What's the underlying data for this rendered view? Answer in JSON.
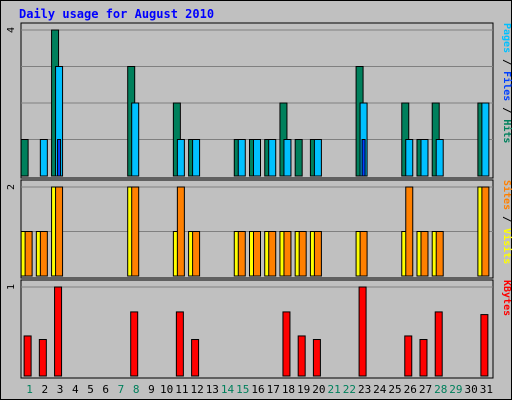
{
  "colors": {
    "frame_bg": "#c0c0c0",
    "plot_bg": "#c0c0c0",
    "grid": "#808080",
    "title": "#0000ff",
    "hits": "#00805c",
    "files": "#00c0ff",
    "pages": "#0040ff",
    "visits": "#ffff00",
    "sites": "#ff8000",
    "kbytes": "#ff0000",
    "weekend_day": "#00805c",
    "weekday": "#000000"
  },
  "chart_data": {
    "type": "bar",
    "title": "Daily usage for August 2010",
    "days": [
      1,
      2,
      3,
      4,
      5,
      6,
      7,
      8,
      9,
      10,
      11,
      12,
      13,
      14,
      15,
      16,
      17,
      18,
      19,
      20,
      21,
      22,
      23,
      24,
      25,
      26,
      27,
      28,
      29,
      30,
      31
    ],
    "weekend_days": [
      1,
      7,
      8,
      14,
      15,
      21,
      22,
      28,
      29
    ],
    "panels": [
      {
        "id": "top",
        "ymax": 4,
        "ymax_label": "4",
        "legend": [
          {
            "text": "Pages",
            "color_key": "files"
          },
          {
            "text": " / ",
            "color_key": "weekday"
          },
          {
            "text": "Files",
            "color_key": "pages"
          },
          {
            "text": " / ",
            "color_key": "weekday"
          },
          {
            "text": "Hits",
            "color_key": "hits"
          }
        ],
        "series": [
          {
            "key": "hits",
            "values": [
              1,
              0,
              4,
              0,
              0,
              0,
              0,
              3,
              0,
              0,
              2,
              1,
              0,
              0,
              1,
              1,
              1,
              2,
              1,
              1,
              0,
              0,
              3,
              0,
              0,
              2,
              1,
              2,
              0,
              0,
              2
            ]
          },
          {
            "key": "files",
            "values": [
              0,
              1,
              3,
              0,
              0,
              0,
              0,
              2,
              0,
              0,
              1,
              1,
              0,
              0,
              1,
              1,
              1,
              1,
              0,
              1,
              0,
              0,
              2,
              0,
              0,
              1,
              1,
              1,
              0,
              0,
              2
            ]
          },
          {
            "key": "pages",
            "values": [
              0,
              0,
              1,
              0,
              0,
              0,
              0,
              0,
              0,
              0,
              0,
              0,
              0,
              0,
              0,
              0,
              0,
              0,
              0,
              0,
              0,
              0,
              1,
              0,
              0,
              0,
              0,
              0,
              0,
              0,
              0
            ]
          }
        ]
      },
      {
        "id": "middle",
        "ymax": 2,
        "ymax_label": "2",
        "legend": [
          {
            "text": "Sites",
            "color_key": "sites"
          },
          {
            "text": " / ",
            "color_key": "weekday"
          },
          {
            "text": "Visits",
            "color_key": "visits"
          }
        ],
        "series": [
          {
            "key": "visits",
            "values": [
              1,
              1,
              2,
              0,
              0,
              0,
              0,
              2,
              0,
              0,
              1,
              1,
              0,
              0,
              1,
              1,
              1,
              1,
              1,
              1,
              0,
              0,
              1,
              0,
              0,
              1,
              1,
              1,
              0,
              0,
              2
            ]
          },
          {
            "key": "sites",
            "values": [
              1,
              1,
              2,
              0,
              0,
              0,
              0,
              2,
              0,
              0,
              2,
              1,
              0,
              0,
              1,
              1,
              1,
              1,
              1,
              1,
              0,
              0,
              1,
              0,
              0,
              2,
              1,
              1,
              0,
              0,
              2
            ]
          }
        ]
      },
      {
        "id": "bottom",
        "ymax": 1,
        "ymax_label": "1",
        "legend": [
          {
            "text": "KBytes",
            "color_key": "kbytes"
          }
        ],
        "series": [
          {
            "key": "kbytes",
            "values": [
              0.45,
              0.41,
              1.0,
              0,
              0,
              0,
              0,
              0.72,
              0,
              0,
              0.72,
              0.41,
              0,
              0,
              0,
              0,
              0,
              0.72,
              0.45,
              0.41,
              0,
              0,
              1.0,
              0,
              0,
              0.45,
              0.41,
              0.72,
              0,
              0,
              0.69
            ]
          }
        ]
      }
    ]
  }
}
